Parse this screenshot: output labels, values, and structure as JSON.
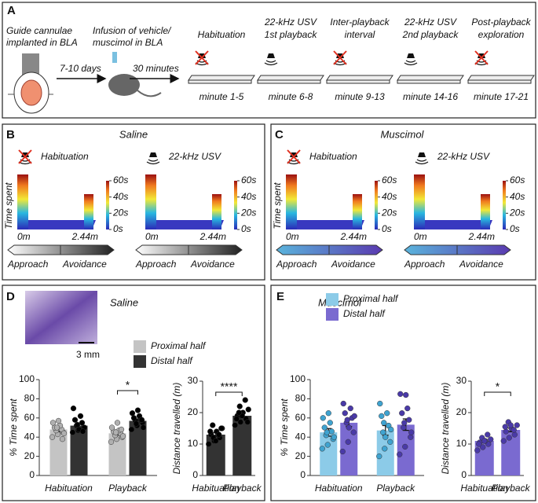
{
  "panel_a": {
    "label": "A",
    "steps": [
      [
        "Guide cannulae",
        "implanted in BLA"
      ],
      [
        "Infusion of vehicle/",
        "muscimol in BLA"
      ]
    ],
    "intervals": [
      "7-10 days",
      "30 minutes"
    ],
    "phases": [
      {
        "title": [
          "Habituation"
        ],
        "time": "minute 1-5",
        "sound": false
      },
      {
        "title": [
          "22-kHz USV",
          "1st playback"
        ],
        "time": "minute 6-8",
        "sound": true
      },
      {
        "title": [
          "Inter-playback",
          "interval"
        ],
        "time": "minute 9-13",
        "sound": false
      },
      {
        "title": [
          "22-kHz USV",
          "2nd playback"
        ],
        "time": "minute 14-16",
        "sound": true
      },
      {
        "title": [
          "Post-playback",
          "exploration"
        ],
        "time": "minute 17-21",
        "sound": false
      }
    ]
  },
  "heatmap_scale": {
    "ticks": [
      {
        "value": 60,
        "label": "60s"
      },
      {
        "value": 40,
        "label": "40s"
      },
      {
        "value": 20,
        "label": "20s"
      },
      {
        "value": 0,
        "label": "0s"
      }
    ],
    "lim": [
      0,
      60
    ],
    "x_labels": [
      "0m",
      "2.44m"
    ],
    "y_label": "Time spent"
  },
  "panel_b": {
    "label": "B",
    "title": "Saline",
    "maps": [
      "Habituation",
      "22-kHz USV"
    ],
    "direction": [
      "Approach",
      "Avoidance"
    ],
    "arrow_colors": [
      "#ffffff",
      "#222222"
    ]
  },
  "panel_c": {
    "label": "C",
    "title": "Muscimol",
    "maps": [
      "Habituation",
      "22-kHz USV"
    ],
    "direction": [
      "Approach",
      "Avoidance"
    ],
    "arrow_colors": [
      "#5ab4dc",
      "#5a3ab0"
    ]
  },
  "panel_d": {
    "label": "D",
    "title": "Saline",
    "scale_bar": "3 mm"
  },
  "panel_e": {
    "label": "E",
    "title": "Muscimol"
  },
  "chart_data": [
    {
      "type": "bar",
      "y_label": "% Time spent",
      "categories": [
        "Habituation",
        "Playback"
      ],
      "ylim": [
        0,
        100
      ],
      "yticks": [
        0,
        20,
        40,
        60,
        80,
        100
      ],
      "series": [
        {
          "name": "Proximal half",
          "color": "#c4c4c4",
          "point_color": "#b0b0b0",
          "values": [
            48,
            44
          ],
          "errors": [
            2.2,
            2.0
          ],
          "points": [
            [
              40,
              43,
              45,
              47,
              48,
              50,
              52,
              55,
              57,
              44,
              50,
              38
            ],
            [
              35,
              38,
              40,
              42,
              44,
              46,
              47,
              50,
              55,
              41,
              45,
              48
            ]
          ]
        },
        {
          "name": "Distal half",
          "color": "#333333",
          "point_color": "#000000",
          "values": [
            52,
            57
          ],
          "errors": [
            2.2,
            2.0
          ],
          "points": [
            [
              45,
              47,
              50,
              52,
              55,
              58,
              62,
              70,
              48,
              50,
              53,
              46
            ],
            [
              48,
              52,
              55,
              57,
              58,
              60,
              62,
              65,
              68,
              50,
              54,
              58
            ]
          ]
        }
      ],
      "annotations": [
        {
          "text": "*",
          "category": "Playback"
        }
      ]
    },
    {
      "type": "bar",
      "y_label": "Distance travelled (m)",
      "categories": [
        "Habituation",
        "Playback"
      ],
      "ylim": [
        0,
        30
      ],
      "yticks": [
        0,
        10,
        20,
        30
      ],
      "color": "#333333",
      "point_color": "#000000",
      "values": [
        13,
        19
      ],
      "errors": [
        0.6,
        0.7
      ],
      "points": [
        [
          10,
          11,
          12,
          13,
          14,
          15,
          12,
          13,
          14,
          11,
          15,
          16
        ],
        [
          16,
          17,
          18,
          19,
          20,
          21,
          22,
          24,
          18,
          19,
          17,
          20
        ]
      ],
      "annotations": [
        {
          "text": "****"
        }
      ]
    },
    {
      "type": "bar",
      "y_label": "% Time spent",
      "categories": [
        "Habituation",
        "Playback"
      ],
      "ylim": [
        0,
        100
      ],
      "yticks": [
        0,
        20,
        40,
        60,
        80,
        100
      ],
      "series": [
        {
          "name": "Proximal half",
          "color": "#8ccbe8",
          "point_color": "#3fa3d0",
          "values": [
            45,
            47
          ],
          "errors": [
            4,
            5
          ],
          "points": [
            [
              28,
              32,
              38,
              42,
              46,
              50,
              55,
              60,
              65,
              40,
              45
            ],
            [
              20,
              28,
              35,
              45,
              52,
              62,
              65,
              75,
              40,
              48,
              55
            ]
          ]
        },
        {
          "name": "Distal half",
          "color": "#7a6ad0",
          "point_color": "#4a3aa8",
          "values": [
            55,
            53
          ],
          "errors": [
            4,
            6
          ],
          "points": [
            [
              25,
              35,
              45,
              55,
              60,
              65,
              70,
              75,
              50,
              62,
              58
            ],
            [
              22,
              30,
              40,
              50,
              58,
              65,
              70,
              85,
              84,
              45,
              55
            ]
          ]
        }
      ],
      "annotations": []
    },
    {
      "type": "bar",
      "y_label": "Distance travelled (m)",
      "categories": [
        "Habituation",
        "Playback"
      ],
      "ylim": [
        0,
        30
      ],
      "yticks": [
        0,
        10,
        20,
        30
      ],
      "color": "#7a6ad0",
      "point_color": "#4a3aa8",
      "values": [
        11,
        14.5
      ],
      "errors": [
        0.5,
        0.6
      ],
      "points": [
        [
          8,
          9,
          10,
          10.5,
          11,
          11.5,
          12,
          13,
          10,
          11
        ],
        [
          11,
          12,
          13,
          14,
          15,
          16,
          17,
          14.5,
          15.5,
          16
        ]
      ],
      "annotations": [
        {
          "text": "*"
        }
      ]
    }
  ]
}
